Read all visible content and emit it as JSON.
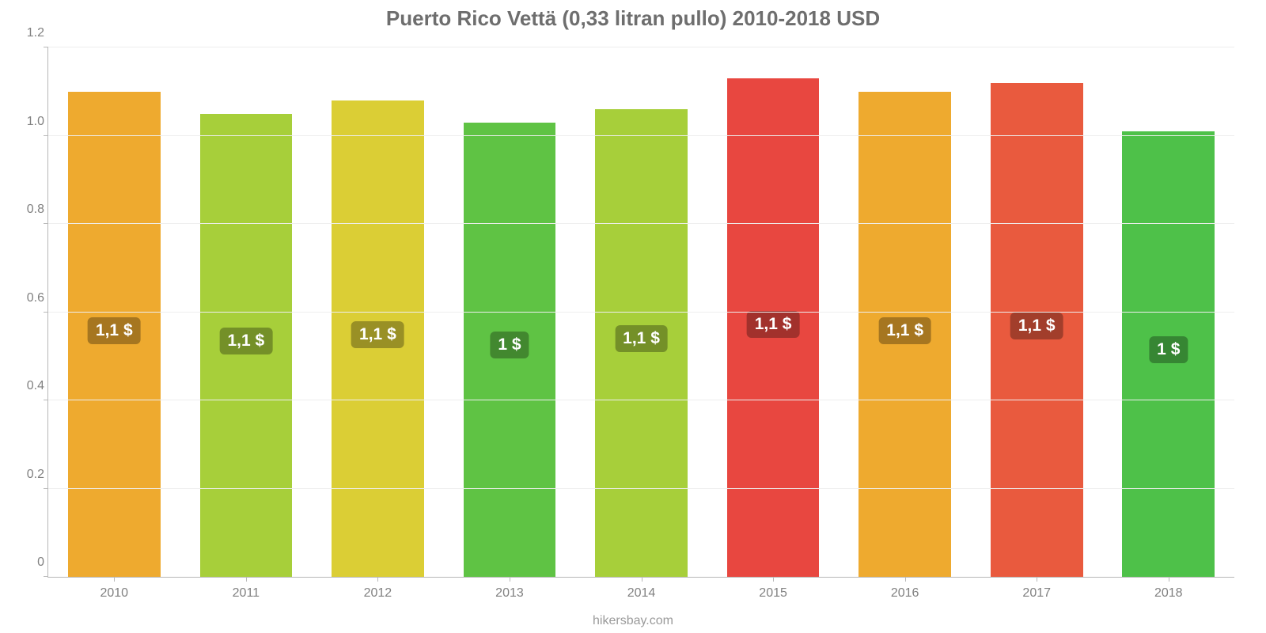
{
  "chart": {
    "type": "bar",
    "title": "Puerto Rico Vettä (0,33 litran pullo) 2010-2018 USD",
    "title_fontsize": 26,
    "title_color": "#6e6e6e",
    "caption": "hikersbay.com",
    "caption_fontsize": 16,
    "caption_color": "#9a9a9a",
    "background_color": "#ffffff",
    "grid_color": "#eeeeee",
    "axis_color": "#b8b8b8",
    "tick_fontsize": 16,
    "tick_color": "#808080",
    "bar_width_pct": 70,
    "bar_label_fontsize": 21,
    "bar_label_bottom_pct": 48,
    "bar_label_text_color": "#ffffff",
    "bar_label_bg_opacity": 0.3,
    "bar_label_bg_base": "#000000",
    "y": {
      "min": 0,
      "max": 1.2,
      "ticks": [
        0,
        0.2,
        0.4,
        0.6,
        0.8,
        1.0,
        1.2
      ],
      "tick_labels": [
        "0",
        "0.2",
        "0.4",
        "0.6",
        "0.8",
        "1.0",
        "1.2"
      ]
    },
    "categories": [
      "2010",
      "2011",
      "2012",
      "2013",
      "2014",
      "2015",
      "2016",
      "2017",
      "2018"
    ],
    "values": [
      1.1,
      1.05,
      1.08,
      1.03,
      1.06,
      1.13,
      1.1,
      1.12,
      1.01
    ],
    "value_labels": [
      "1,1 $",
      "1,1 $",
      "1,1 $",
      "1 $",
      "1,1 $",
      "1,1 $",
      "1,1 $",
      "1,1 $",
      "1 $"
    ],
    "bar_colors": [
      "#eeaa2f",
      "#a7cf3a",
      "#dbce35",
      "#5fc344",
      "#a7cf3a",
      "#e84740",
      "#eeaa2f",
      "#e95a3e",
      "#4ec149"
    ]
  }
}
